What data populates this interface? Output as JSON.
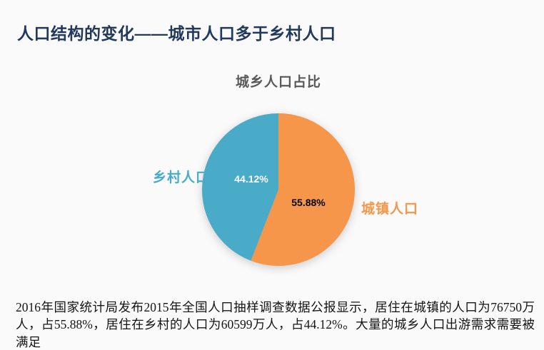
{
  "header": {
    "title": "人口结构的变化——城市人口多于乡村人口",
    "title_color": "#21395c"
  },
  "chart_data": {
    "type": "pie",
    "title": "城乡人口占比",
    "categories": [
      "城镇人口",
      "乡村人口"
    ],
    "values": [
      55.88,
      44.12
    ],
    "series": [
      {
        "name": "城镇人口",
        "value": 55.88,
        "pct_label": "55.88%",
        "color": "#f5964a",
        "pct_text_color": "#000000",
        "label_side": "right"
      },
      {
        "name": "乡村人口",
        "value": 44.12,
        "pct_label": "44.12%",
        "color": "#49abc8",
        "pct_text_color": "#ffffff",
        "label_side": "left"
      }
    ],
    "start_angle": "12 o'clock",
    "direction": "clockwise",
    "legend": "none (direct category labels beside slices)"
  },
  "description": {
    "text": "2016年国家统计局发布2015年全国人口抽样调查数据公报显示，居住在城镇的人口为76750万人，占55.88%，居住在乡村的人口为60599万人，占44.12%。大量的城乡人口出游需求需要被满足"
  }
}
